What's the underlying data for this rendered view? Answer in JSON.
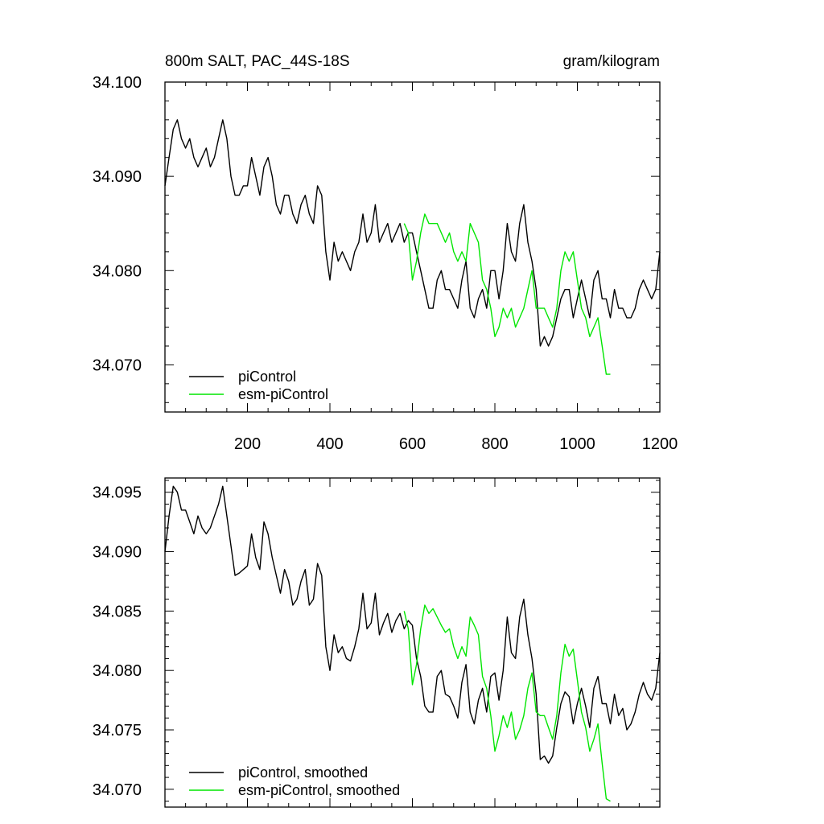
{
  "colors": {
    "picontrol": "#000000",
    "esm": "#00e600",
    "frame": "#000000"
  },
  "chart_data": [
    {
      "type": "line",
      "title_left": "800m SALT, PAC_44S-18S",
      "title_right": "gram/kilogram",
      "xlim": [
        0,
        1200
      ],
      "ylim": [
        34.065,
        34.1
      ],
      "xticks": [
        200,
        400,
        600,
        800,
        1000,
        1200
      ],
      "xtick_labels": [
        "200",
        "400",
        "600",
        "800",
        "1000",
        "1200"
      ],
      "yticks": [
        34.07,
        34.08,
        34.09,
        34.1
      ],
      "ytick_labels": [
        "34.070",
        "34.080",
        "34.090",
        "34.100"
      ],
      "legend": "bottom-left",
      "series": [
        {
          "name": "piControl",
          "color": "#000000",
          "x": [
            0,
            10,
            20,
            30,
            40,
            50,
            60,
            70,
            80,
            90,
            100,
            110,
            120,
            130,
            140,
            150,
            160,
            170,
            180,
            190,
            200,
            210,
            220,
            230,
            240,
            250,
            260,
            270,
            280,
            290,
            300,
            310,
            320,
            330,
            340,
            350,
            360,
            370,
            380,
            390,
            400,
            410,
            420,
            430,
            440,
            450,
            460,
            470,
            480,
            490,
            500,
            510,
            520,
            530,
            540,
            550,
            560,
            570,
            580,
            590,
            600,
            610,
            620,
            630,
            640,
            650,
            660,
            670,
            680,
            690,
            700,
            710,
            720,
            730,
            740,
            750,
            760,
            770,
            780,
            790,
            800,
            810,
            820,
            830,
            840,
            850,
            860,
            870,
            880,
            890,
            900,
            910,
            920,
            930,
            940,
            950,
            960,
            970,
            980,
            990,
            1000,
            1010,
            1020,
            1030,
            1040,
            1050,
            1060,
            1070,
            1080,
            1090,
            1100,
            1110,
            1120,
            1130,
            1140,
            1150,
            1160,
            1170,
            1180,
            1190,
            1200
          ],
          "y": [
            34.089,
            34.092,
            34.095,
            34.096,
            34.094,
            34.093,
            34.094,
            34.092,
            34.091,
            34.092,
            34.093,
            34.091,
            34.092,
            34.094,
            34.096,
            34.094,
            34.09,
            34.088,
            34.088,
            34.089,
            34.089,
            34.092,
            34.09,
            34.088,
            34.091,
            34.092,
            34.09,
            34.087,
            34.086,
            34.088,
            34.088,
            34.086,
            34.085,
            34.087,
            34.088,
            34.086,
            34.085,
            34.089,
            34.088,
            34.082,
            34.079,
            34.083,
            34.081,
            34.082,
            34.081,
            34.08,
            34.082,
            34.083,
            34.086,
            34.083,
            34.084,
            34.087,
            34.083,
            34.084,
            34.085,
            34.083,
            34.084,
            34.085,
            34.083,
            34.084,
            34.084,
            34.082,
            34.08,
            34.078,
            34.076,
            34.076,
            34.079,
            34.08,
            34.078,
            34.078,
            34.077,
            34.076,
            34.079,
            34.081,
            34.076,
            34.075,
            34.077,
            34.078,
            34.076,
            34.08,
            34.08,
            34.077,
            34.08,
            34.085,
            34.082,
            34.081,
            34.085,
            34.087,
            34.083,
            34.081,
            34.078,
            34.072,
            34.073,
            34.072,
            34.073,
            34.075,
            34.077,
            34.078,
            34.078,
            34.075,
            34.077,
            34.079,
            34.077,
            34.075,
            34.079,
            34.08,
            34.077,
            34.077,
            34.075,
            34.078,
            34.076,
            34.076,
            34.075,
            34.075,
            34.076,
            34.078,
            34.079,
            34.078,
            34.077,
            34.078,
            34.082
          ]
        },
        {
          "name": "esm-piControl",
          "color": "#00e600",
          "x": [
            580,
            590,
            600,
            610,
            620,
            630,
            640,
            650,
            660,
            670,
            680,
            690,
            700,
            710,
            720,
            730,
            740,
            750,
            760,
            770,
            780,
            790,
            800,
            810,
            820,
            830,
            840,
            850,
            860,
            870,
            880,
            890,
            900,
            910,
            920,
            930,
            940,
            950,
            960,
            970,
            980,
            990,
            1000,
            1010,
            1020,
            1030,
            1040,
            1050,
            1060,
            1070,
            1080
          ],
          "y": [
            34.085,
            34.084,
            34.079,
            34.081,
            34.084,
            34.086,
            34.085,
            34.085,
            34.085,
            34.084,
            34.083,
            34.084,
            34.082,
            34.081,
            34.082,
            34.081,
            34.085,
            34.084,
            34.083,
            34.079,
            34.078,
            34.076,
            34.073,
            34.074,
            34.076,
            34.075,
            34.076,
            34.074,
            34.075,
            34.076,
            34.078,
            34.08,
            34.076,
            34.076,
            34.076,
            34.075,
            34.074,
            34.076,
            34.08,
            34.082,
            34.081,
            34.082,
            34.079,
            34.076,
            34.075,
            34.073,
            34.074,
            34.075,
            34.072,
            34.069,
            34.069
          ]
        }
      ]
    },
    {
      "type": "line",
      "xlim": [
        0,
        1200
      ],
      "ylim": [
        34.0685,
        34.0962
      ],
      "xticks": [
        200,
        400,
        600,
        800,
        1000,
        1200
      ],
      "yticks": [
        34.07,
        34.075,
        34.08,
        34.085,
        34.09,
        34.095
      ],
      "ytick_labels": [
        "34.070",
        "34.075",
        "34.080",
        "34.085",
        "34.090",
        "34.095"
      ],
      "legend": "bottom-left",
      "series": [
        {
          "name": "piControl, smoothed",
          "color": "#000000",
          "x": [
            0,
            10,
            20,
            30,
            40,
            50,
            60,
            70,
            80,
            90,
            100,
            110,
            120,
            130,
            140,
            150,
            160,
            170,
            180,
            190,
            200,
            210,
            220,
            230,
            240,
            250,
            260,
            270,
            280,
            290,
            300,
            310,
            320,
            330,
            340,
            350,
            360,
            370,
            380,
            390,
            400,
            410,
            420,
            430,
            440,
            450,
            460,
            470,
            480,
            490,
            500,
            510,
            520,
            530,
            540,
            550,
            560,
            570,
            580,
            590,
            600,
            610,
            620,
            630,
            640,
            650,
            660,
            670,
            680,
            690,
            700,
            710,
            720,
            730,
            740,
            750,
            760,
            770,
            780,
            790,
            800,
            810,
            820,
            830,
            840,
            850,
            860,
            870,
            880,
            890,
            900,
            910,
            920,
            930,
            940,
            950,
            960,
            970,
            980,
            990,
            1000,
            1010,
            1020,
            1030,
            1040,
            1050,
            1060,
            1070,
            1080,
            1090,
            1100,
            1110,
            1120,
            1130,
            1140,
            1150,
            1160,
            1170,
            1180,
            1190,
            1200
          ],
          "y": [
            34.09,
            34.093,
            34.0955,
            34.095,
            34.0935,
            34.0935,
            34.0925,
            34.0915,
            34.093,
            34.092,
            34.0915,
            34.092,
            34.093,
            34.094,
            34.0955,
            34.093,
            34.0905,
            34.088,
            34.0882,
            34.0885,
            34.0888,
            34.0915,
            34.0895,
            34.0885,
            34.0925,
            34.0915,
            34.0895,
            34.088,
            34.0865,
            34.0885,
            34.0875,
            34.0855,
            34.086,
            34.0875,
            34.0885,
            34.0855,
            34.086,
            34.089,
            34.088,
            34.082,
            34.08,
            34.083,
            34.0815,
            34.082,
            34.081,
            34.0808,
            34.082,
            34.0835,
            34.0865,
            34.0835,
            34.084,
            34.0865,
            34.083,
            34.084,
            34.0848,
            34.0832,
            34.0842,
            34.0848,
            34.0835,
            34.0842,
            34.0838,
            34.081,
            34.0795,
            34.077,
            34.0765,
            34.0765,
            34.0795,
            34.08,
            34.078,
            34.0778,
            34.077,
            34.076,
            34.079,
            34.0805,
            34.0765,
            34.0755,
            34.0775,
            34.0785,
            34.0765,
            34.0795,
            34.0798,
            34.0775,
            34.08,
            34.0845,
            34.0815,
            34.081,
            34.0845,
            34.086,
            34.083,
            34.081,
            34.078,
            34.0725,
            34.0728,
            34.0722,
            34.0728,
            34.0752,
            34.0772,
            34.0782,
            34.0778,
            34.0755,
            34.0772,
            34.0785,
            34.077,
            34.0752,
            34.0785,
            34.0795,
            34.0772,
            34.0772,
            34.0755,
            34.078,
            34.0762,
            34.0768,
            34.075,
            34.0755,
            34.0765,
            34.078,
            34.079,
            34.078,
            34.0775,
            34.0785,
            34.0815
          ]
        },
        {
          "name": "esm-piControl, smoothed",
          "color": "#00e600",
          "x": [
            580,
            590,
            600,
            610,
            620,
            630,
            640,
            650,
            660,
            670,
            680,
            690,
            700,
            710,
            720,
            730,
            740,
            750,
            760,
            770,
            780,
            790,
            800,
            810,
            820,
            830,
            840,
            850,
            860,
            870,
            880,
            890,
            900,
            910,
            920,
            930,
            940,
            950,
            960,
            970,
            980,
            990,
            1000,
            1010,
            1020,
            1030,
            1040,
            1050,
            1060,
            1070,
            1080
          ],
          "y": [
            34.085,
            34.0835,
            34.0788,
            34.0805,
            34.0835,
            34.0855,
            34.0848,
            34.0852,
            34.0845,
            34.0838,
            34.0832,
            34.0835,
            34.082,
            34.081,
            34.082,
            34.0812,
            34.0845,
            34.0838,
            34.083,
            34.0795,
            34.0785,
            34.0762,
            34.0732,
            34.0745,
            34.0762,
            34.0752,
            34.0765,
            34.0742,
            34.075,
            34.0762,
            34.0785,
            34.0798,
            34.0765,
            34.0762,
            34.0762,
            34.0752,
            34.0742,
            34.0762,
            34.0798,
            34.0822,
            34.0812,
            34.0818,
            34.0792,
            34.0765,
            34.0752,
            34.0732,
            34.0742,
            34.0755,
            34.0722,
            34.0692,
            34.069
          ]
        }
      ]
    }
  ]
}
